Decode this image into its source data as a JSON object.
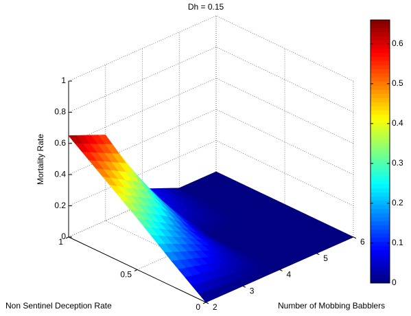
{
  "chart_data": {
    "type": "surface",
    "title": "Dh = 0.15",
    "x_label": "Number of Mobbing Babblers",
    "y_label": "Non Sentinel Deception Rate",
    "z_label": "Mortality Rate",
    "x": [
      2,
      3,
      4,
      5,
      6
    ],
    "y": [
      0,
      0.25,
      0.5,
      0.75,
      1
    ],
    "z": [
      [
        0,
        0,
        0,
        0,
        0
      ],
      [
        0.16,
        0.08,
        0,
        0,
        0
      ],
      [
        0.33,
        0.18,
        0,
        0,
        0
      ],
      [
        0.49,
        0.35,
        0.05,
        0,
        0
      ],
      [
        0.65,
        0.55,
        0.1,
        0,
        0
      ]
    ],
    "xlim": [
      2,
      6
    ],
    "xticks": [
      2,
      3,
      4,
      5,
      6
    ],
    "ylim": [
      0,
      1
    ],
    "yticks": [
      0,
      0.5,
      1
    ],
    "zlim": [
      0,
      1
    ],
    "zticks": [
      0,
      0.2,
      0.4,
      0.6,
      0.8,
      1
    ],
    "colormap": "jet",
    "clim": [
      0,
      0.66
    ],
    "cticks": [
      0,
      0.1,
      0.2,
      0.3,
      0.4,
      0.5,
      0.6
    ],
    "grid": true
  }
}
